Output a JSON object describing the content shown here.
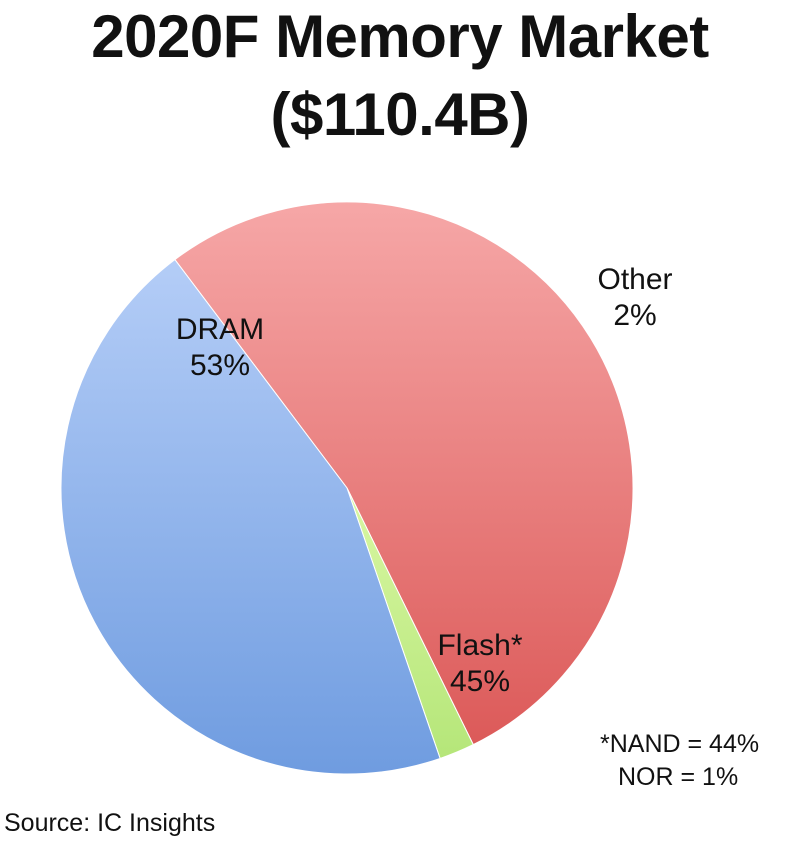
{
  "chart_data": {
    "type": "pie",
    "title_line1": "2020F Memory Market",
    "title_line2": "($110.4B)",
    "slices": [
      {
        "label": "DRAM",
        "value": 53,
        "value_label": "53%",
        "color": "#e8757a"
      },
      {
        "label": "Other",
        "value": 2,
        "value_label": "2%",
        "color": "#c6f08a"
      },
      {
        "label": "Flash*",
        "value": 45,
        "value_label": "45%",
        "color": "#8fb4ec"
      }
    ],
    "footnote": [
      "*NAND = 44%",
      "NOR = 1%"
    ],
    "source": "Source:  IC Insights"
  }
}
